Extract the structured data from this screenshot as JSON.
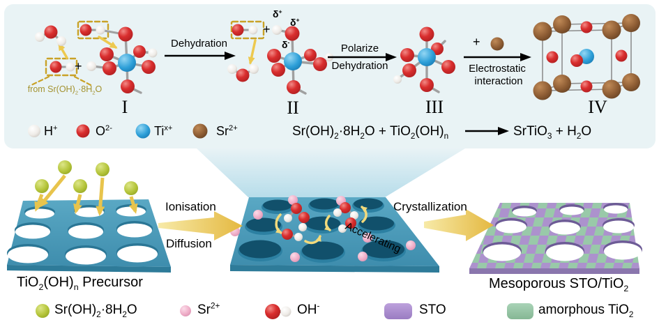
{
  "panel": {
    "stage_labels": [
      "I",
      "II",
      "III",
      "IV"
    ],
    "from_label": "from Sr(OH)~2~·8H~2~O",
    "plus_structure1": "+",
    "plus_structure2": "+",
    "plus_structure4": "+",
    "delta_plus_a": "δ^+^",
    "delta_plus_b": "δ^+^",
    "delta_minus": "δ^-^",
    "arrow1_label": "Dehydration",
    "arrow2_label_top": "Polarize",
    "arrow2_label_bottom": "Dehydration",
    "arrow3_label_top": "Electrostatic",
    "arrow3_label_bottom": "interaction",
    "legend": [
      {
        "key": "hydrogen",
        "label": "H^+^"
      },
      {
        "key": "oxygen",
        "label": "O^2-^"
      },
      {
        "key": "titanium",
        "label": "Ti^x+^"
      },
      {
        "key": "strontium",
        "label": "Sr^2+^"
      }
    ],
    "equation_lhs": "Sr(OH)~2~·8H~2~O + TiO~2~(OH)~n~",
    "equation_rhs": "SrTiO~3~ + H~2~O"
  },
  "process": {
    "arrow1_label_top": "Ionisation",
    "arrow1_label_bottom": "Diffusion",
    "arrow2_label": "Crystallization",
    "accelerating_label": "Accelerating",
    "slab1_caption": "TiO~2~(OH)~n~ Precursor",
    "slab3_caption": "Mesoporous STO/TiO~2~"
  },
  "bottom_legend": [
    {
      "key": "sroh-particle",
      "label": "Sr(OH)~2~·8H~2~O"
    },
    {
      "key": "sr-ion",
      "label": "Sr^2+^"
    },
    {
      "key": "hydroxide",
      "label": "OH^-^"
    },
    {
      "key": "sto",
      "label": "STO"
    },
    {
      "key": "amorphous-tio2",
      "label": "amorphous TiO~2~"
    }
  ],
  "colors": {
    "panel_bg": "#e9f3f5",
    "hydrogen_white": "#f1eeea",
    "oxygen_red": "#d43030",
    "titanium_blue": "#2d9fd8",
    "strontium_brown": "#8d5c33",
    "sroh_particle_olive": "#b5c53b",
    "sr_ion_pink": "#efaec8",
    "slab_blue": "#4a9cbc",
    "sto_purple": "#ac92cd",
    "amorphous_green": "#99c9a9",
    "arrow_yellow": "#e8c44c",
    "annotation_gold": "#c9a227"
  }
}
